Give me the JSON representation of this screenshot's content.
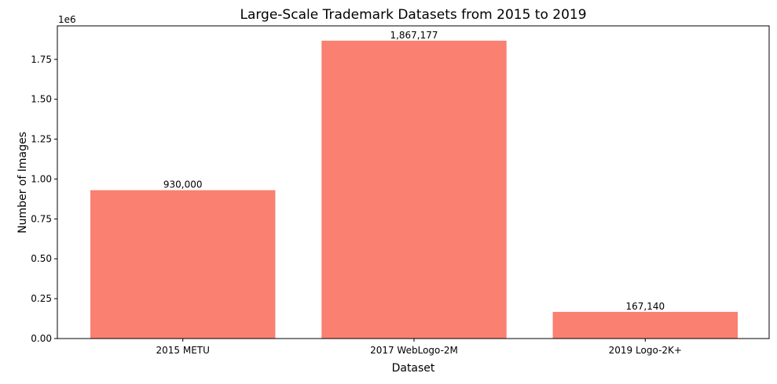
{
  "chart_data": {
    "type": "bar",
    "title": "Large-Scale Trademark Datasets from 2015 to 2019",
    "xlabel": "Dataset",
    "ylabel": "Number of Images",
    "y_offset_label": "1e6",
    "categories": [
      "2015 METU",
      "2017 WebLogo-2M",
      "2019 Logo-2K+"
    ],
    "values": [
      930000,
      1867177,
      167140
    ],
    "value_labels": [
      "930,000",
      "1,867,177",
      "167,140"
    ],
    "ylim": [
      0,
      1960000
    ],
    "y_ticks": [
      0,
      250000,
      500000,
      750000,
      1000000,
      1250000,
      1500000,
      1750000
    ],
    "y_tick_labels": [
      "0.00",
      "0.25",
      "0.50",
      "0.75",
      "1.00",
      "1.25",
      "1.50",
      "1.75"
    ],
    "bar_color": "#fa8072",
    "grid": false,
    "legend": "none"
  }
}
